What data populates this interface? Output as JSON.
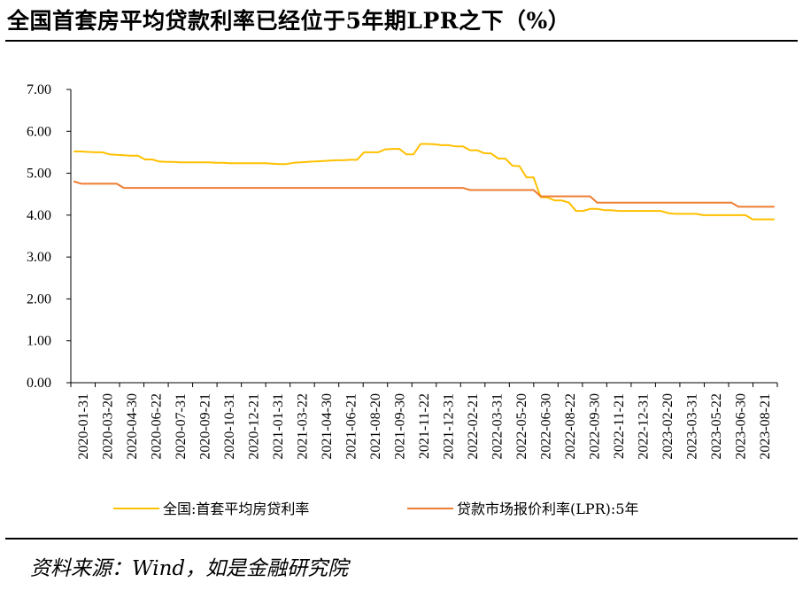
{
  "title": "全国首套房平均贷款利率已经位于5年期LPR之下（%）",
  "source": "资料来源：Wind，如是金融研究院",
  "chart_data": {
    "type": "line",
    "ylim": [
      0,
      7
    ],
    "yticks": [
      "0.00",
      "1.00",
      "2.00",
      "3.00",
      "4.00",
      "5.00",
      "6.00",
      "7.00"
    ],
    "grid": false,
    "legend_position": "bottom",
    "x_tick_labels": [
      "2020-01-31",
      "2020-03-20",
      "2020-04-30",
      "2020-06-22",
      "2020-07-31",
      "2020-09-21",
      "2020-10-31",
      "2020-12-21",
      "2021-01-31",
      "2021-03-22",
      "2021-04-30",
      "2021-06-21",
      "2021-08-20",
      "2021-09-30",
      "2021-11-22",
      "2021-12-31",
      "2022-02-21",
      "2022-03-31",
      "2022-05-20",
      "2022-06-30",
      "2022-08-22",
      "2022-09-30",
      "2022-11-21",
      "2022-12-31",
      "2023-02-20",
      "2023-03-31",
      "2023-05-22",
      "2023-06-30",
      "2023-08-21"
    ],
    "series": [
      {
        "name": "全国:首套平均房贷利率",
        "color": "#FFC000",
        "values": [
          5.52,
          5.52,
          5.51,
          5.5,
          5.5,
          5.45,
          5.44,
          5.43,
          5.42,
          5.42,
          5.33,
          5.33,
          5.28,
          5.27,
          5.27,
          5.26,
          5.26,
          5.26,
          5.26,
          5.26,
          5.25,
          5.25,
          5.24,
          5.24,
          5.24,
          5.24,
          5.24,
          5.24,
          5.23,
          5.22,
          5.22,
          5.25,
          5.26,
          5.27,
          5.28,
          5.29,
          5.3,
          5.31,
          5.31,
          5.32,
          5.32,
          5.5,
          5.5,
          5.5,
          5.57,
          5.58,
          5.58,
          5.45,
          5.45,
          5.7,
          5.7,
          5.69,
          5.67,
          5.67,
          5.64,
          5.64,
          5.55,
          5.55,
          5.48,
          5.47,
          5.35,
          5.35,
          5.18,
          5.17,
          4.9,
          4.9,
          4.43,
          4.42,
          4.35,
          4.35,
          4.3,
          4.1,
          4.1,
          4.15,
          4.15,
          4.12,
          4.12,
          4.1,
          4.1,
          4.1,
          4.1,
          4.1,
          4.1,
          4.1,
          4.05,
          4.03,
          4.03,
          4.03,
          4.03,
          4.0,
          4.0,
          4.0,
          4.0,
          4.0,
          4.0,
          4.0,
          3.9,
          3.9,
          3.9,
          3.9
        ]
      },
      {
        "name": "贷款市场报价利率(LPR):5年",
        "color": "#ED7D31",
        "values": [
          4.8,
          4.75,
          4.75,
          4.75,
          4.75,
          4.75,
          4.75,
          4.65,
          4.65,
          4.65,
          4.65,
          4.65,
          4.65,
          4.65,
          4.65,
          4.65,
          4.65,
          4.65,
          4.65,
          4.65,
          4.65,
          4.65,
          4.65,
          4.65,
          4.65,
          4.65,
          4.65,
          4.65,
          4.65,
          4.65,
          4.65,
          4.65,
          4.65,
          4.65,
          4.65,
          4.65,
          4.65,
          4.65,
          4.65,
          4.65,
          4.65,
          4.65,
          4.65,
          4.65,
          4.65,
          4.65,
          4.65,
          4.65,
          4.65,
          4.65,
          4.65,
          4.65,
          4.65,
          4.65,
          4.65,
          4.65,
          4.6,
          4.6,
          4.6,
          4.6,
          4.6,
          4.6,
          4.6,
          4.6,
          4.6,
          4.6,
          4.45,
          4.45,
          4.45,
          4.45,
          4.45,
          4.45,
          4.45,
          4.45,
          4.3,
          4.3,
          4.3,
          4.3,
          4.3,
          4.3,
          4.3,
          4.3,
          4.3,
          4.3,
          4.3,
          4.3,
          4.3,
          4.3,
          4.3,
          4.3,
          4.3,
          4.3,
          4.3,
          4.3,
          4.2,
          4.2,
          4.2,
          4.2,
          4.2,
          4.2
        ]
      }
    ]
  }
}
